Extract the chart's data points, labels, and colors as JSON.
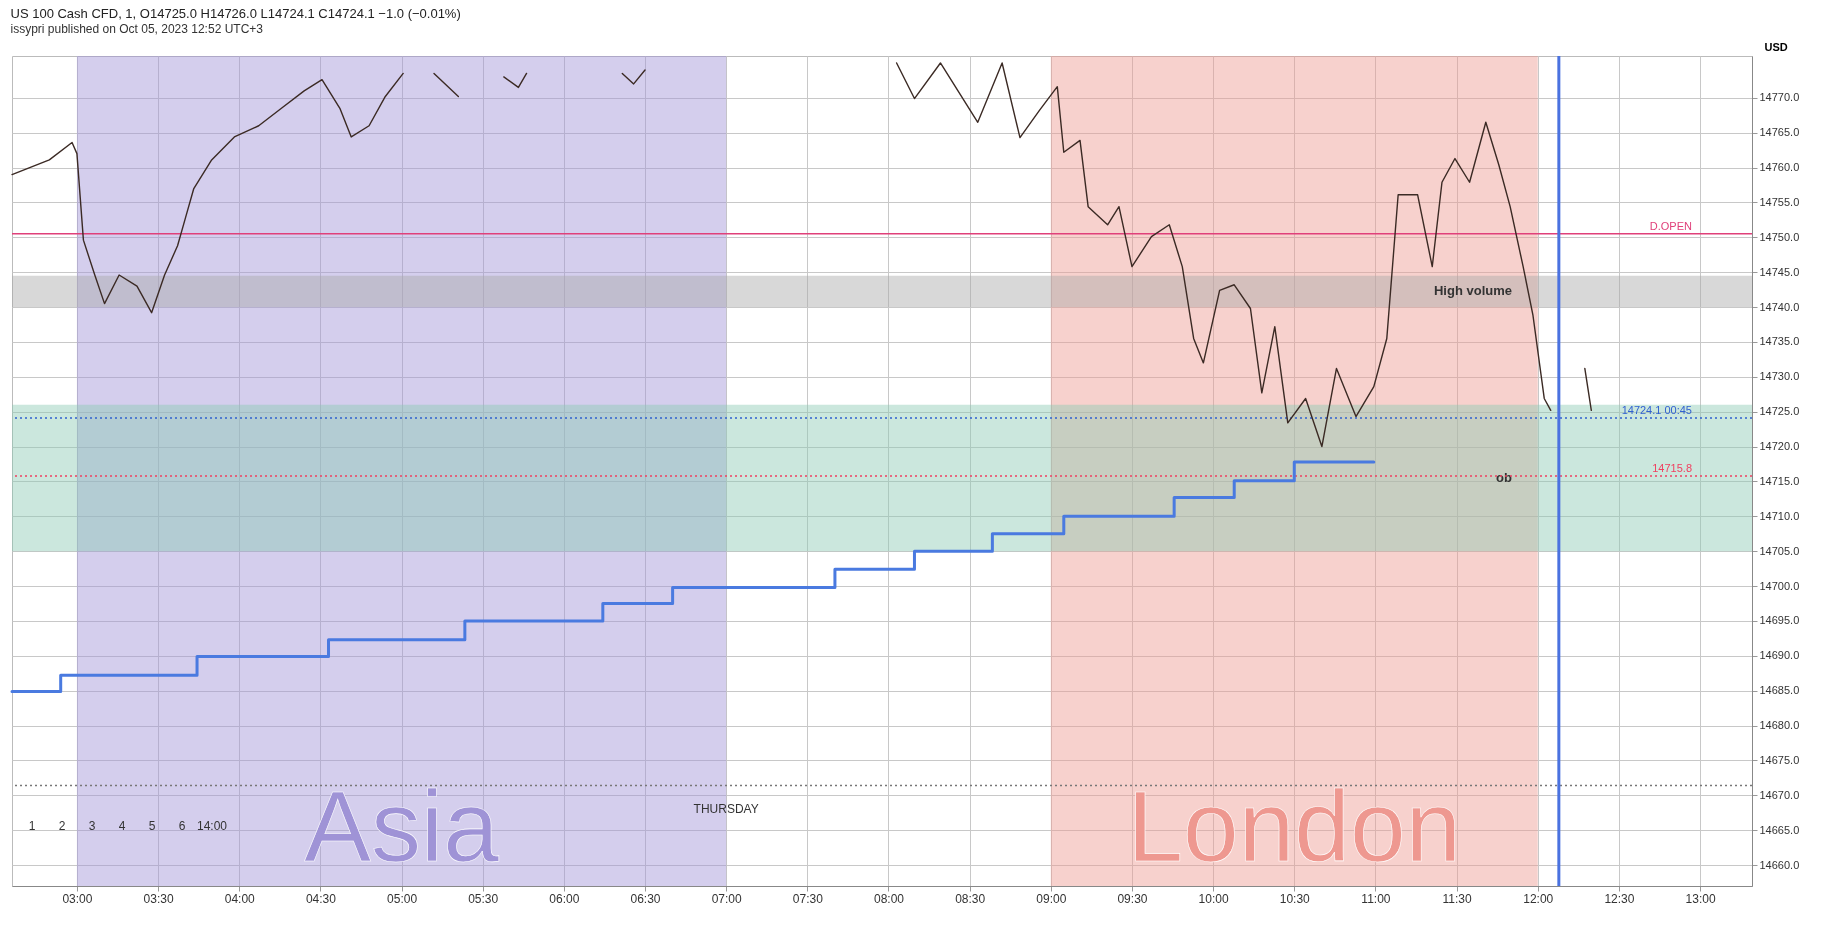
{
  "chart_data": {
    "type": "line",
    "title": "US 100 Cash CFD, 1, O14725.0 H14726.0 L14724.1 C14724.1 −1.0 (−0.01%)",
    "subtitle": "issypri published on Oct 05, 2023 12:52 UTC+3",
    "xlim": [
      2.6,
      13.32
    ],
    "ylim": [
      14657,
      14776
    ],
    "xticks": [
      {
        "value": 3,
        "label": "03:00"
      },
      {
        "value": 3.5,
        "label": "03:30"
      },
      {
        "value": 4,
        "label": "04:00"
      },
      {
        "value": 4.5,
        "label": "04:30"
      },
      {
        "value": 5,
        "label": "05:00"
      },
      {
        "value": 5.5,
        "label": "05:30"
      },
      {
        "value": 6,
        "label": "06:00"
      },
      {
        "value": 6.5,
        "label": "06:30"
      },
      {
        "value": 7,
        "label": "07:00"
      },
      {
        "value": 7.5,
        "label": "07:30"
      },
      {
        "value": 8,
        "label": "08:00"
      },
      {
        "value": 8.5,
        "label": "08:30"
      },
      {
        "value": 9,
        "label": "09:00"
      },
      {
        "value": 9.5,
        "label": "09:30"
      },
      {
        "value": 10,
        "label": "10:00"
      },
      {
        "value": 10.5,
        "label": "10:30"
      },
      {
        "value": 11,
        "label": "11:00"
      },
      {
        "value": 11.5,
        "label": "11:30"
      },
      {
        "value": 12,
        "label": "12:00"
      },
      {
        "value": 12.5,
        "label": "12:30"
      },
      {
        "value": 13,
        "label": "13:00"
      }
    ],
    "yticks": [
      {
        "value": 14660,
        "label": "14660.0"
      },
      {
        "value": 14665,
        "label": "14665.0"
      },
      {
        "value": 14670,
        "label": "14670.0"
      },
      {
        "value": 14675,
        "label": "14675.0"
      },
      {
        "value": 14680,
        "label": "14680.0"
      },
      {
        "value": 14685,
        "label": "14685.0"
      },
      {
        "value": 14690,
        "label": "14690.0"
      },
      {
        "value": 14695,
        "label": "14695.0"
      },
      {
        "value": 14700,
        "label": "14700.0"
      },
      {
        "value": 14705,
        "label": "14705.0"
      },
      {
        "value": 14710,
        "label": "14710.0"
      },
      {
        "value": 14715,
        "label": "14715.0"
      },
      {
        "value": 14720,
        "label": "14720.0"
      },
      {
        "value": 14725,
        "label": "14725.0"
      },
      {
        "value": 14730,
        "label": "14730.0"
      },
      {
        "value": 14735,
        "label": "14735.0"
      },
      {
        "value": 14740,
        "label": "14740.0"
      },
      {
        "value": 14745,
        "label": "14745.0"
      },
      {
        "value": 14750,
        "label": "14750.0"
      },
      {
        "value": 14755,
        "label": "14755.0"
      },
      {
        "value": 14760,
        "label": "14760.0"
      },
      {
        "value": 14765,
        "label": "14765.0"
      },
      {
        "value": 14770,
        "label": "14770.0"
      }
    ],
    "ylabel": "USD",
    "grid": true,
    "series": [
      {
        "type": "line",
        "color": "#3b2a24",
        "x": [
          2.6,
          2.83,
          2.97,
          3.0,
          3.04,
          3.11,
          3.17,
          3.26,
          3.37,
          3.46,
          3.54,
          3.62,
          3.67,
          3.72,
          3.83,
          3.97,
          4.12,
          4.26,
          4.4,
          4.51,
          4.62,
          4.69,
          4.8,
          4.9,
          5.01,
          5.1,
          5.2,
          5.35,
          5.45,
          5.63,
          5.72,
          5.77,
          5.85,
          6.36,
          6.43,
          6.5,
          6.55,
          8.05,
          8.16,
          8.32,
          8.55,
          8.7,
          8.81,
          8.93,
          9.04,
          9.08,
          9.18,
          9.23,
          9.35,
          9.42,
          9.5,
          9.62,
          9.73,
          9.81,
          9.88,
          9.94,
          10.04,
          10.13,
          10.23,
          10.3,
          10.38,
          10.46,
          10.57,
          10.67,
          10.76,
          10.88,
          10.99,
          11.07,
          11.14,
          11.26,
          11.35,
          11.41,
          11.49,
          11.58,
          11.68,
          11.76,
          11.83,
          11.91,
          11.97,
          12.04,
          12.08,
          12.2,
          12.29,
          12.33
        ],
        "values": [
          14759.0,
          14761.1,
          14763.6,
          14762.0,
          14749.6,
          14744.6,
          14740.5,
          14744.6,
          14743.0,
          14739.2,
          14744.6,
          14748.8,
          14752.9,
          14757.0,
          14761.1,
          14764.4,
          14766.0,
          14768.5,
          14771.0,
          14772.6,
          14768.5,
          14764.4,
          14766.0,
          14770.2,
          14773.5,
          null,
          14773.5,
          14770.2,
          null,
          14773.0,
          14771.5,
          14773.5,
          null,
          14773.5,
          14772.0,
          14774.0,
          null,
          14775.0,
          14769.9,
          14775.0,
          14766.5,
          14775.0,
          14764.3,
          14768.2,
          14771.6,
          14762.2,
          14763.9,
          14754.4,
          14751.8,
          14754.4,
          14745.8,
          14750.1,
          14751.8,
          14745.8,
          14735.5,
          14732.0,
          14742.4,
          14743.2,
          14739.8,
          14727.7,
          14737.2,
          14723.4,
          14726.9,
          14720.0,
          14731.2,
          14724.3,
          14728.6,
          14735.5,
          14756.1,
          14756.1,
          14745.8,
          14757.9,
          14761.3,
          14757.9,
          14766.5,
          14760.4,
          14754.4,
          14745.8,
          14738.9,
          14726.9,
          14725.2,
          null,
          14731.2,
          14725.2
        ]
      },
      {
        "type": "step",
        "color": "#4a7ae0",
        "x": [
          2.6,
          2.9,
          3.74,
          4.55,
          5.39,
          6.24,
          6.67,
          7.67,
          8.16,
          8.64,
          9.08,
          9.76,
          10.13,
          10.5,
          10.99
        ],
        "values": [
          14684.9,
          14687.2,
          14689.9,
          14692.3,
          14695.0,
          14697.5,
          14699.8,
          14702.4,
          14705.0,
          14707.5,
          14710.0,
          14712.7,
          14715.1,
          14717.8,
          14717.8
        ]
      }
    ],
    "ref_lines": [
      {
        "axis": "y",
        "value": 14750.5,
        "label": "D.OPEN",
        "color": "#e0407a"
      },
      {
        "axis": "y",
        "value": 14724.1,
        "label": "14724.1 00:45",
        "color": "#3060d0",
        "line_style": "dotted"
      },
      {
        "axis": "y",
        "value": 14715.8,
        "label": "14715.8",
        "color": "#f04060",
        "line_style": "dotted"
      },
      {
        "axis": "y",
        "value": 14671.4,
        "color": "#777777",
        "line_style": "dotted"
      },
      {
        "axis": "x",
        "value": 12.13,
        "color": "#4a72e0"
      }
    ],
    "bands": [
      {
        "axis": "x",
        "from": 3.0,
        "to": 7.0,
        "label": "Asia",
        "color": "#9f93d6"
      },
      {
        "axis": "x",
        "from": 9.0,
        "to": 12.0,
        "label": "London",
        "color": "#ee9890"
      },
      {
        "axis": "y",
        "from": 14740.0,
        "to": 14744.5,
        "label": "High volume",
        "color": "#a9a9a9"
      },
      {
        "axis": "y",
        "from": 14705.0,
        "to": 14726.0,
        "label": "ob",
        "color": "#8cc9b4"
      }
    ],
    "annotations": [
      "1",
      "2",
      "3",
      "4",
      "5",
      "6",
      "14:00",
      {
        "text": "THURSDAY",
        "x": 7.0,
        "y": 14668.0
      }
    ]
  }
}
